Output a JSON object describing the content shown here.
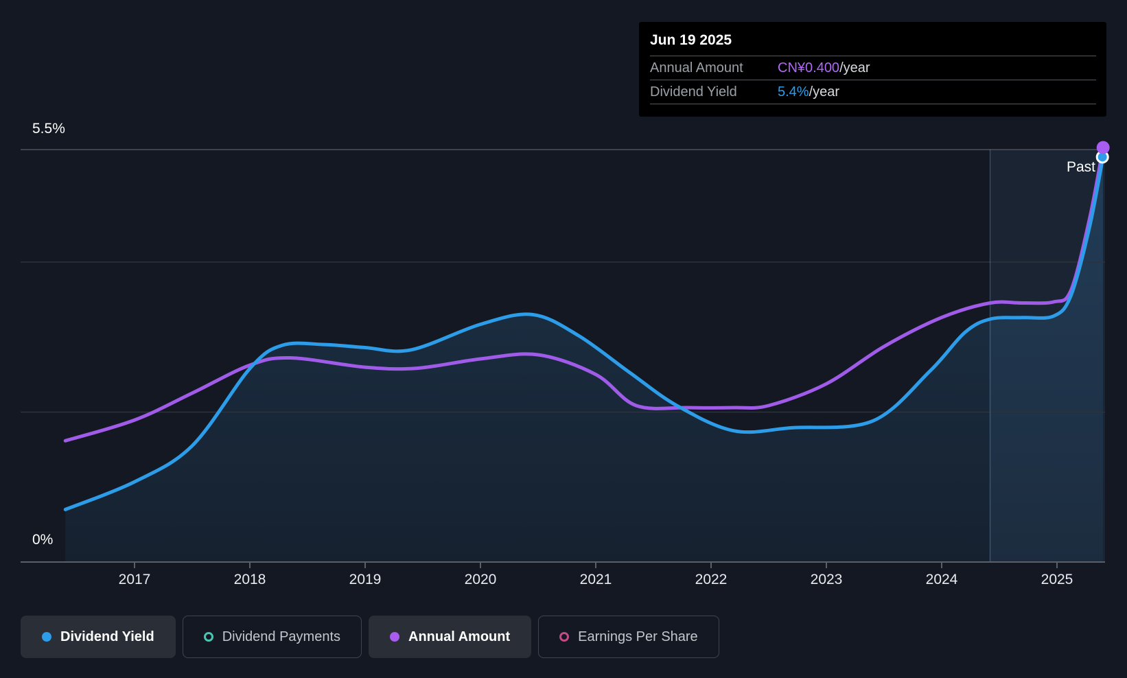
{
  "tooltip": {
    "date": "Jun 19 2025",
    "rows": [
      {
        "label": "Annual Amount",
        "value": "CN¥0.400",
        "suffix": "/year",
        "color": "#b168f5"
      },
      {
        "label": "Dividend Yield",
        "value": "5.4%",
        "suffix": "/year",
        "color": "#2d9ce9"
      }
    ]
  },
  "axis": {
    "y_top_label": "5.5%",
    "y_bottom_label": "0%"
  },
  "past_label": "Past",
  "legend": [
    {
      "label": "Dividend Yield",
      "marker": "filled",
      "color": "#2d9ce9",
      "active": true
    },
    {
      "label": "Dividend Payments",
      "marker": "open",
      "color": "#49c5b1",
      "active": false
    },
    {
      "label": "Annual Amount",
      "marker": "filled",
      "color": "#a85cf0",
      "active": true
    },
    {
      "label": "Earnings Per Share",
      "marker": "open",
      "color": "#c64985",
      "active": false
    }
  ],
  "colors": {
    "background": "#131822",
    "blue_line": "#2d9ce9",
    "purple_line": "#a05ce8",
    "grid_strong": "#3d444e",
    "grid_faint": "#2c333d",
    "axis_line": "#596069",
    "tick_label": "#e9ebef"
  },
  "chart_data": {
    "type": "line",
    "x_axis": {
      "ticks": [
        2017,
        2018,
        2019,
        2020,
        2021,
        2022,
        2023,
        2024,
        2025
      ],
      "range": [
        2016.4,
        2025.42
      ]
    },
    "y_axis": {
      "unit": "%",
      "range": [
        0,
        5.5
      ],
      "gridlines_pct": [
        2,
        4,
        5.5
      ],
      "top_label": "5.5%",
      "bottom_label": "0%"
    },
    "past_region_start": 2024.42,
    "legend_position": "bottom",
    "grid": true,
    "series": [
      {
        "name": "Dividend Yield",
        "unit": "%",
        "color": "#2d9ce9",
        "area": true,
        "points": [
          [
            2016.4,
            0.7
          ],
          [
            2017.0,
            1.07
          ],
          [
            2017.5,
            1.55
          ],
          [
            2018.0,
            2.58
          ],
          [
            2018.28,
            2.89
          ],
          [
            2018.65,
            2.9
          ],
          [
            2019.0,
            2.86
          ],
          [
            2019.4,
            2.83
          ],
          [
            2020.0,
            3.17
          ],
          [
            2020.45,
            3.3
          ],
          [
            2020.85,
            3.02
          ],
          [
            2021.3,
            2.52
          ],
          [
            2021.71,
            2.08
          ],
          [
            2022.2,
            1.75
          ],
          [
            2022.7,
            1.79
          ],
          [
            2023.4,
            1.88
          ],
          [
            2023.9,
            2.55
          ],
          [
            2024.2,
            3.06
          ],
          [
            2024.42,
            3.24
          ],
          [
            2024.7,
            3.26
          ],
          [
            2024.97,
            3.28
          ],
          [
            2025.12,
            3.55
          ],
          [
            2025.28,
            4.45
          ],
          [
            2025.4,
            5.41
          ]
        ]
      },
      {
        "name": "Annual Amount",
        "unit": "CN¥/year",
        "color": "#a05ce8",
        "area": false,
        "points": [
          [
            2016.4,
            0.117
          ],
          [
            2017.0,
            0.137
          ],
          [
            2017.5,
            0.163
          ],
          [
            2018.0,
            0.19
          ],
          [
            2018.35,
            0.197
          ],
          [
            2019.0,
            0.188
          ],
          [
            2019.45,
            0.187
          ],
          [
            2020.0,
            0.196
          ],
          [
            2020.5,
            0.2
          ],
          [
            2021.0,
            0.181
          ],
          [
            2021.35,
            0.151
          ],
          [
            2021.8,
            0.149
          ],
          [
            2022.2,
            0.149
          ],
          [
            2022.5,
            0.151
          ],
          [
            2023.0,
            0.172
          ],
          [
            2023.5,
            0.208
          ],
          [
            2024.0,
            0.236
          ],
          [
            2024.42,
            0.25
          ],
          [
            2024.7,
            0.25
          ],
          [
            2024.97,
            0.251
          ],
          [
            2025.12,
            0.262
          ],
          [
            2025.28,
            0.33
          ],
          [
            2025.4,
            0.4
          ]
        ]
      }
    ],
    "end_markers": {
      "date": "Jun 19 2025",
      "dividend_yield_pct": 5.4,
      "annual_amount": "CN¥0.400/year"
    }
  }
}
